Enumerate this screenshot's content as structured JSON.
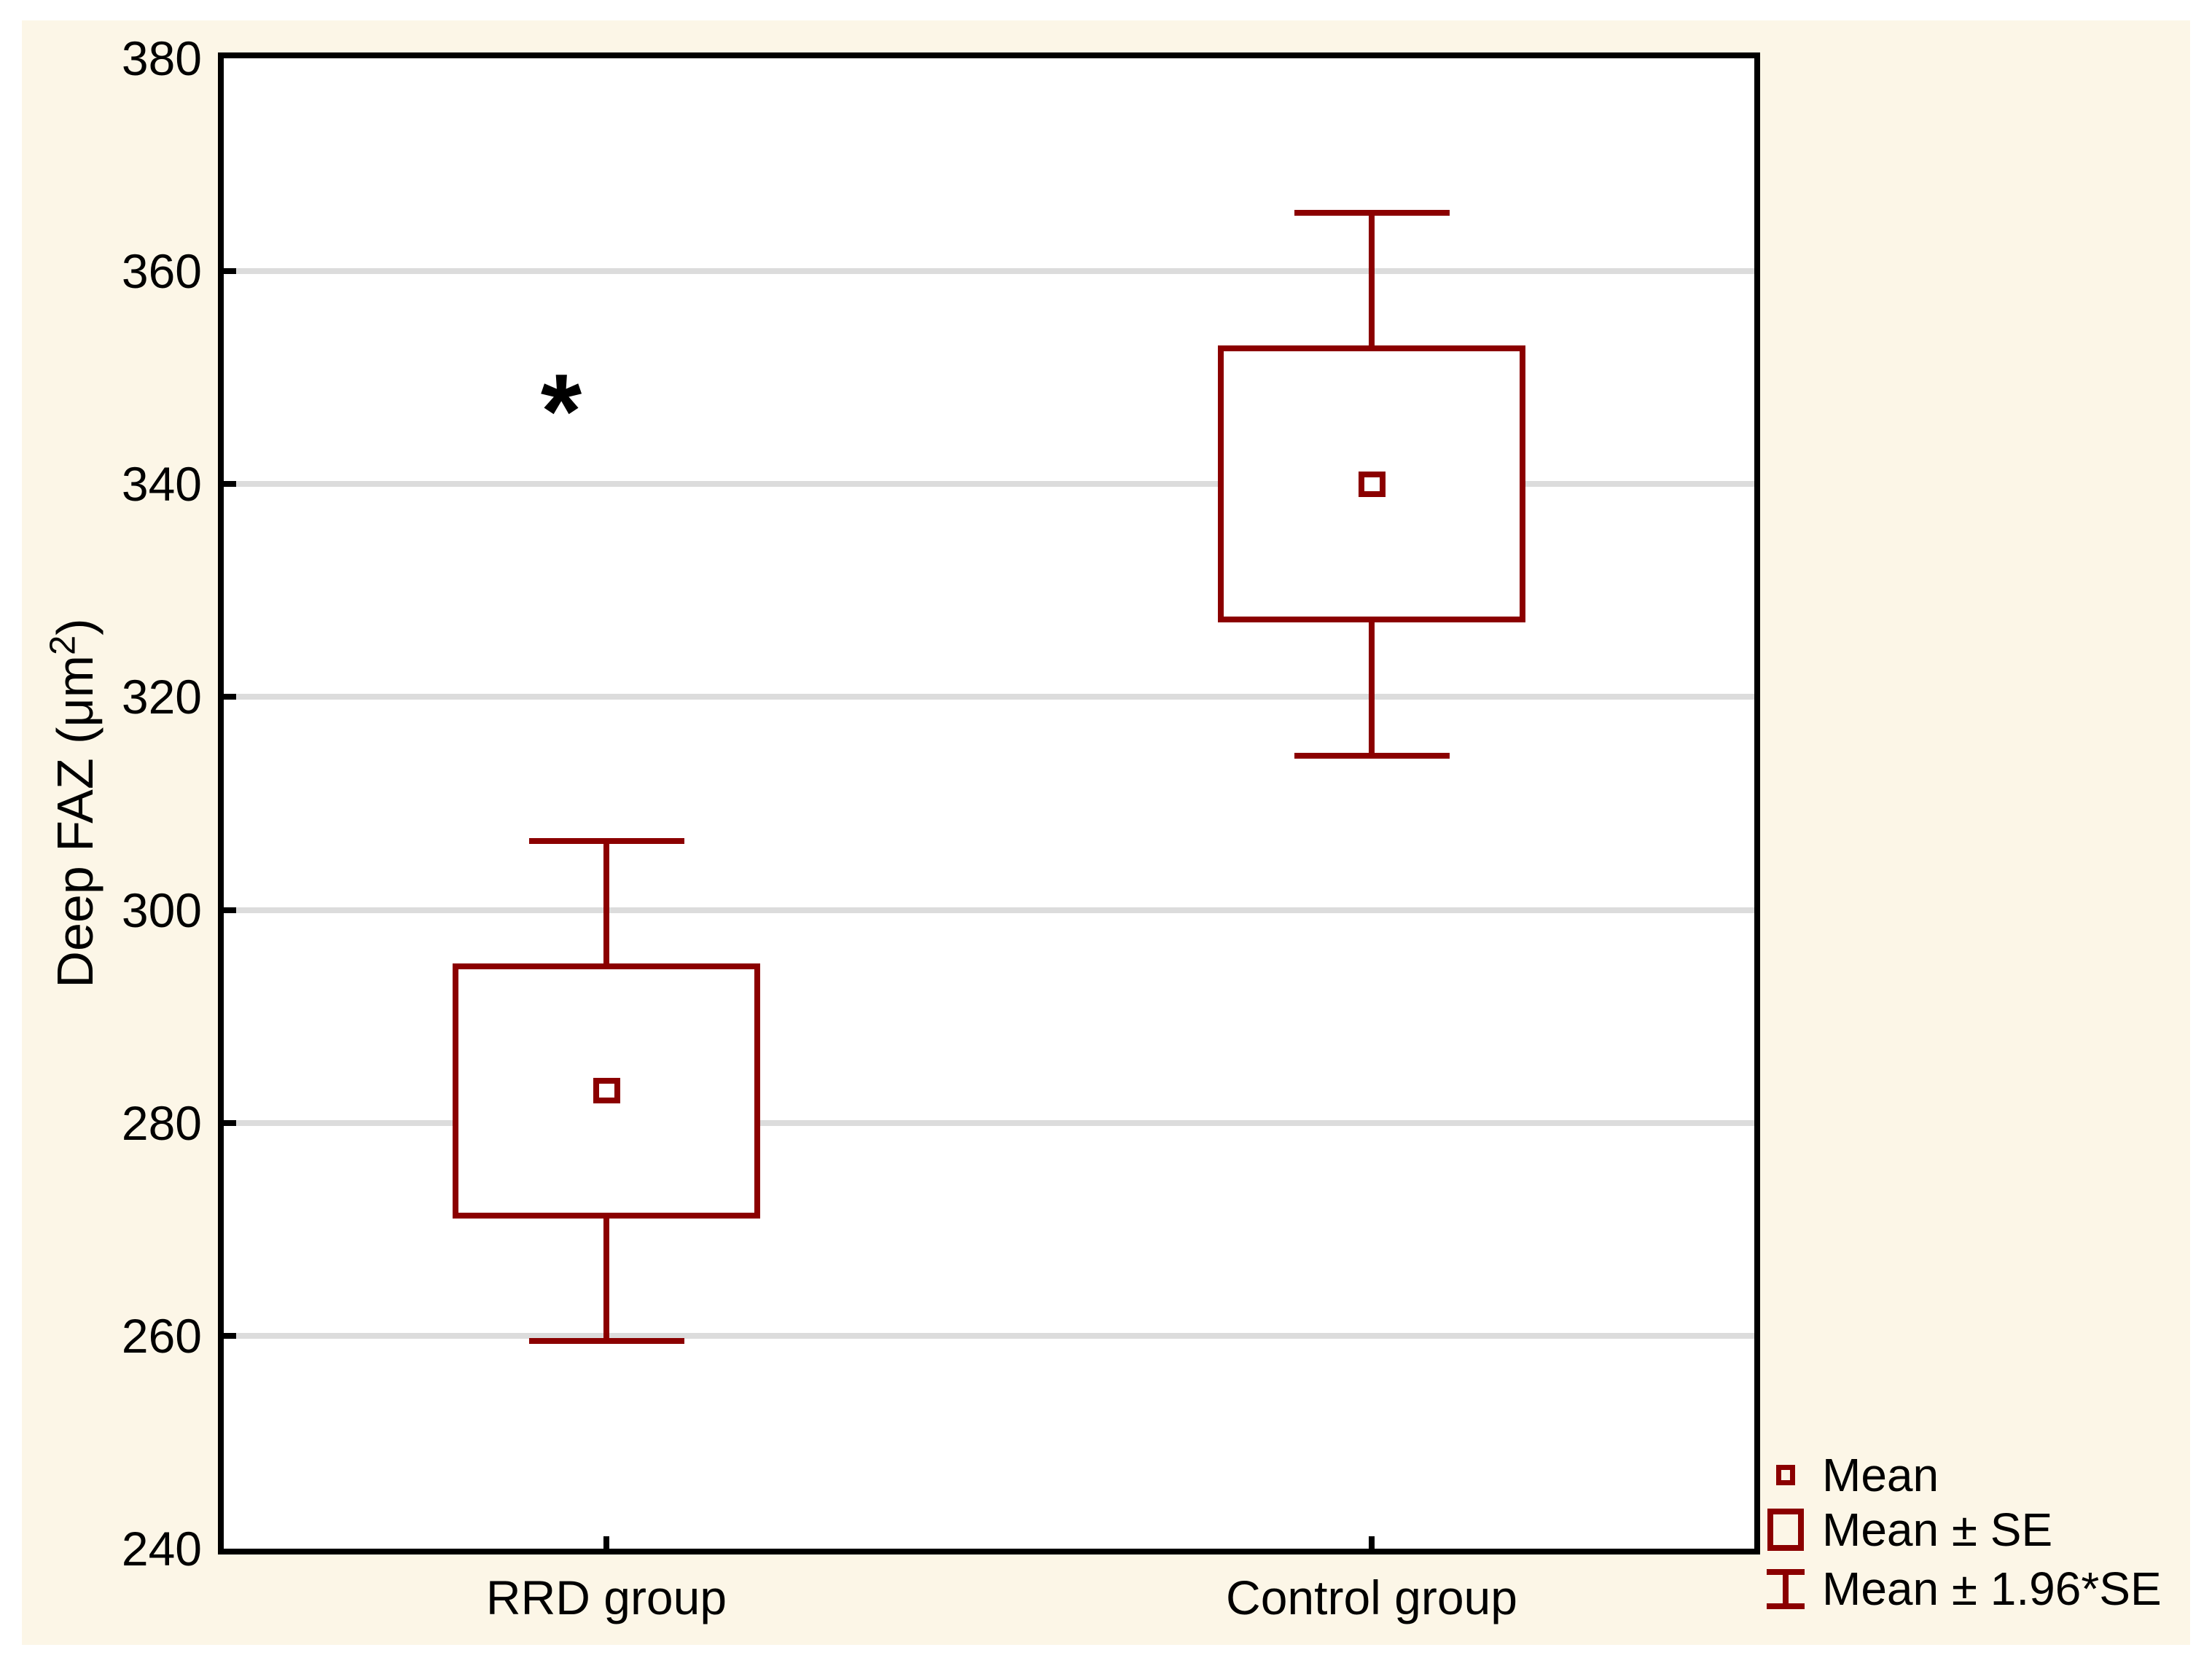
{
  "chart_data": {
    "type": "box",
    "variant": "mean-se-whisker-plot",
    "title": "",
    "xlabel": "",
    "ylabel": "Deep FAZ (μm²)",
    "ylim": [
      240,
      380
    ],
    "ytick_step": 20,
    "yticks": [
      380,
      360,
      340,
      320,
      300,
      280,
      260,
      240
    ],
    "ytick_labels": [
      "380",
      "360",
      "340",
      "320",
      "300",
      "280",
      "260",
      "240"
    ],
    "grid": true,
    "categories": [
      "RRD group",
      "Control group"
    ],
    "series": [
      {
        "name": "RRD group",
        "mean": 283,
        "se": 12,
        "box_low": 271,
        "box_high": 295,
        "whisker_low": 259.5,
        "whisker_high": 306.5
      },
      {
        "name": "Control group",
        "mean": 340,
        "se": 13,
        "box_low": 327,
        "box_high": 353,
        "whisker_low": 314.5,
        "whisker_high": 365.5
      }
    ],
    "annotation": {
      "text": "*",
      "category": "RRD group",
      "y_value": 349
    },
    "legend": {
      "position": "bottom-right",
      "items": [
        {
          "label": "Mean",
          "symbol": "mean-square"
        },
        {
          "label": "Mean ± SE",
          "symbol": "se-box"
        },
        {
          "label": "Mean ± 1.96*SE",
          "symbol": "whisker"
        }
      ]
    },
    "colors": {
      "series": "#8B0000",
      "grid": "#DCDCDC",
      "frame": "#000000",
      "canvas_bg": "#FCF6E7",
      "plot_bg": "#FFFFFF",
      "text": "#000000",
      "annotation": "#000000"
    }
  }
}
